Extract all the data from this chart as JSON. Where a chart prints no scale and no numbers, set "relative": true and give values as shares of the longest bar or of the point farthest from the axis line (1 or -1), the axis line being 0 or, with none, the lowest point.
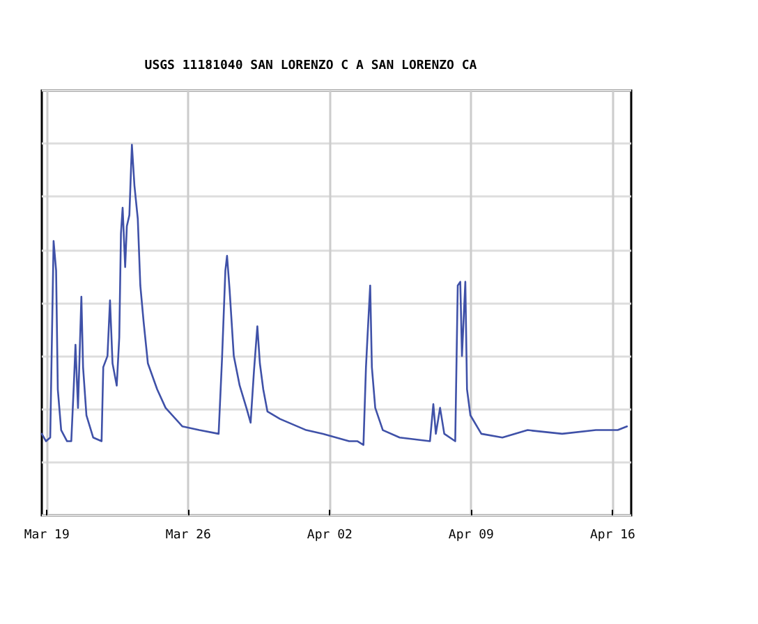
{
  "chart_data": {
    "type": "line",
    "title": "USGS 11181040 SAN LORENZO C A SAN LORENZO CA",
    "relative": true,
    "grid": true,
    "marker": "none",
    "line_style": "solid",
    "xlim": [
      "--03-18T18:00",
      "--04-16T22:00"
    ],
    "xticks": [
      {
        "value": "--03-19",
        "label": "Mar 19"
      },
      {
        "value": "--03-26",
        "label": "Mar 26"
      },
      {
        "value": "--04-02",
        "label": "Apr 02"
      },
      {
        "value": "--04-09",
        "label": "Apr 09"
      },
      {
        "value": "--04-16",
        "label": "Apr 16"
      }
    ],
    "series": [
      {
        "color": "#3f51a8",
        "x": [
          "--03-18T18:00",
          "--03-18T23:00",
          "--03-19T04:00",
          "--03-19T08:00",
          "--03-19T11:00",
          "--03-19T13:00",
          "--03-19T17:00",
          "--03-20T00:00",
          "--03-20T05:00",
          "--03-20T08:00",
          "--03-20T10:00",
          "--03-20T13:00",
          "--03-20T17:00",
          "--03-20T19:00",
          "--03-20T23:00",
          "--03-21T07:00",
          "--03-21T17:00",
          "--03-21T19:00",
          "--03-22T00:00",
          "--03-22T03:00",
          "--03-22T06:00",
          "--03-22T11:00",
          "--03-22T14:00",
          "--03-22T16:00",
          "--03-22T18:00",
          "--03-22T21:00",
          "--03-22T23:00",
          "--03-23T02:00",
          "--03-23T05:00",
          "--03-23T08:00",
          "--03-23T12:00",
          "--03-23T15:00",
          "--03-23T19:00",
          "--03-24T00:00",
          "--03-24T11:00",
          "--03-24T21:00",
          "--03-25T17:00",
          "--03-26T13:00",
          "--03-27T12:00",
          "--03-27T16:00",
          "--03-27T20:00",
          "--03-27T22:00",
          "--03-28T01:00",
          "--03-28T06:00",
          "--03-28T13:00",
          "--03-28T21:00",
          "--03-29T02:00",
          "--03-29T06:00",
          "--03-29T10:00",
          "--03-29T13:00",
          "--03-29T17:00",
          "--03-29T22:00",
          "--03-30T13:00",
          "--03-31T20:00",
          "--04-01T16:00",
          "--04-02T23:00",
          "--04-03T09:00",
          "--04-03T16:00",
          "--04-03T19:00",
          "--04-03T21:00",
          "--04-04T00:00",
          "--04-04T02:00",
          "--04-04T06:00",
          "--04-04T15:00",
          "--04-05T11:00",
          "--04-06T23:00",
          "--04-07T03:00",
          "--04-07T06:00",
          "--04-07T11:00",
          "--04-07T16:00",
          "--04-08T05:00",
          "--04-08T08:00",
          "--04-08T11:00",
          "--04-08T13:00",
          "--04-08T17:00",
          "--04-08T19:00",
          "--04-08T23:00",
          "--04-09T12:00",
          "--04-10T13:00",
          "--04-11T19:00",
          "--04-13T12:00",
          "--04-15T04:00",
          "--04-16T06:00",
          "--04-16T17:00"
        ],
        "values": [
          0.22,
          0.2,
          0.21,
          0.74,
          0.66,
          0.34,
          0.23,
          0.2,
          0.2,
          0.35,
          0.46,
          0.29,
          0.59,
          0.4,
          0.27,
          0.21,
          0.2,
          0.4,
          0.43,
          0.58,
          0.41,
          0.35,
          0.48,
          0.76,
          0.83,
          0.67,
          0.78,
          0.81,
          1,
          0.89,
          0.8,
          0.62,
          0.52,
          0.41,
          0.34,
          0.29,
          0.24,
          0.23,
          0.22,
          0.42,
          0.66,
          0.7,
          0.61,
          0.43,
          0.35,
          0.29,
          0.25,
          0.39,
          0.51,
          0.41,
          0.34,
          0.28,
          0.26,
          0.23,
          0.22,
          0.2,
          0.2,
          0.19,
          0.4,
          0.49,
          0.62,
          0.4,
          0.29,
          0.23,
          0.21,
          0.2,
          0.3,
          0.22,
          0.29,
          0.22,
          0.2,
          0.62,
          0.63,
          0.43,
          0.63,
          0.34,
          0.27,
          0.22,
          0.21,
          0.23,
          0.22,
          0.23,
          0.23,
          0.24
        ]
      }
    ]
  }
}
